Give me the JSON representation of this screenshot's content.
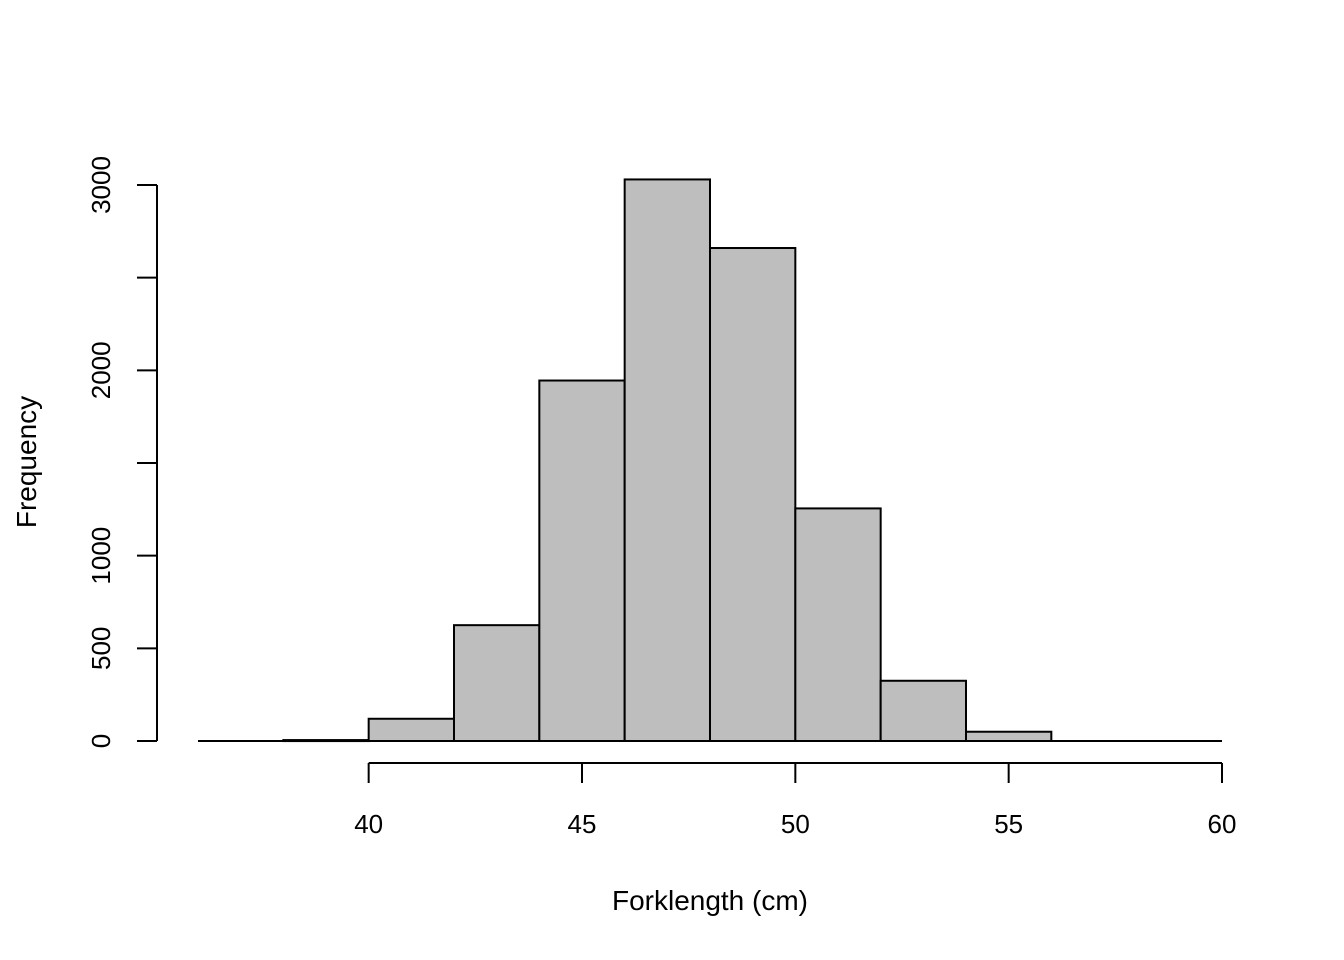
{
  "chart_data": {
    "type": "bar",
    "title": "",
    "xlabel": "Forklength (cm)",
    "ylabel": "Frequency",
    "bins": [
      {
        "start": 36,
        "end": 38,
        "value": 0
      },
      {
        "start": 38,
        "end": 40,
        "value": 5
      },
      {
        "start": 40,
        "end": 42,
        "value": 120
      },
      {
        "start": 42,
        "end": 44,
        "value": 625
      },
      {
        "start": 44,
        "end": 46,
        "value": 1945
      },
      {
        "start": 46,
        "end": 48,
        "value": 3030
      },
      {
        "start": 48,
        "end": 50,
        "value": 2660
      },
      {
        "start": 50,
        "end": 52,
        "value": 1255
      },
      {
        "start": 52,
        "end": 54,
        "value": 325
      },
      {
        "start": 54,
        "end": 56,
        "value": 50
      },
      {
        "start": 56,
        "end": 58,
        "value": 0
      },
      {
        "start": 58,
        "end": 60,
        "value": 0
      }
    ],
    "xlim": [
      36,
      60
    ],
    "ylim": [
      0,
      3000
    ],
    "x_ticks": [
      40,
      45,
      50,
      55,
      60
    ],
    "y_ticks": [
      0,
      500,
      1000,
      1500,
      2000,
      2500,
      3000
    ],
    "y_tick_labels": [
      "0",
      "500",
      "1000",
      "",
      "2000",
      "",
      "3000"
    ],
    "bar_fill": "#bebebe",
    "bar_stroke": "#000000",
    "grid": false
  }
}
